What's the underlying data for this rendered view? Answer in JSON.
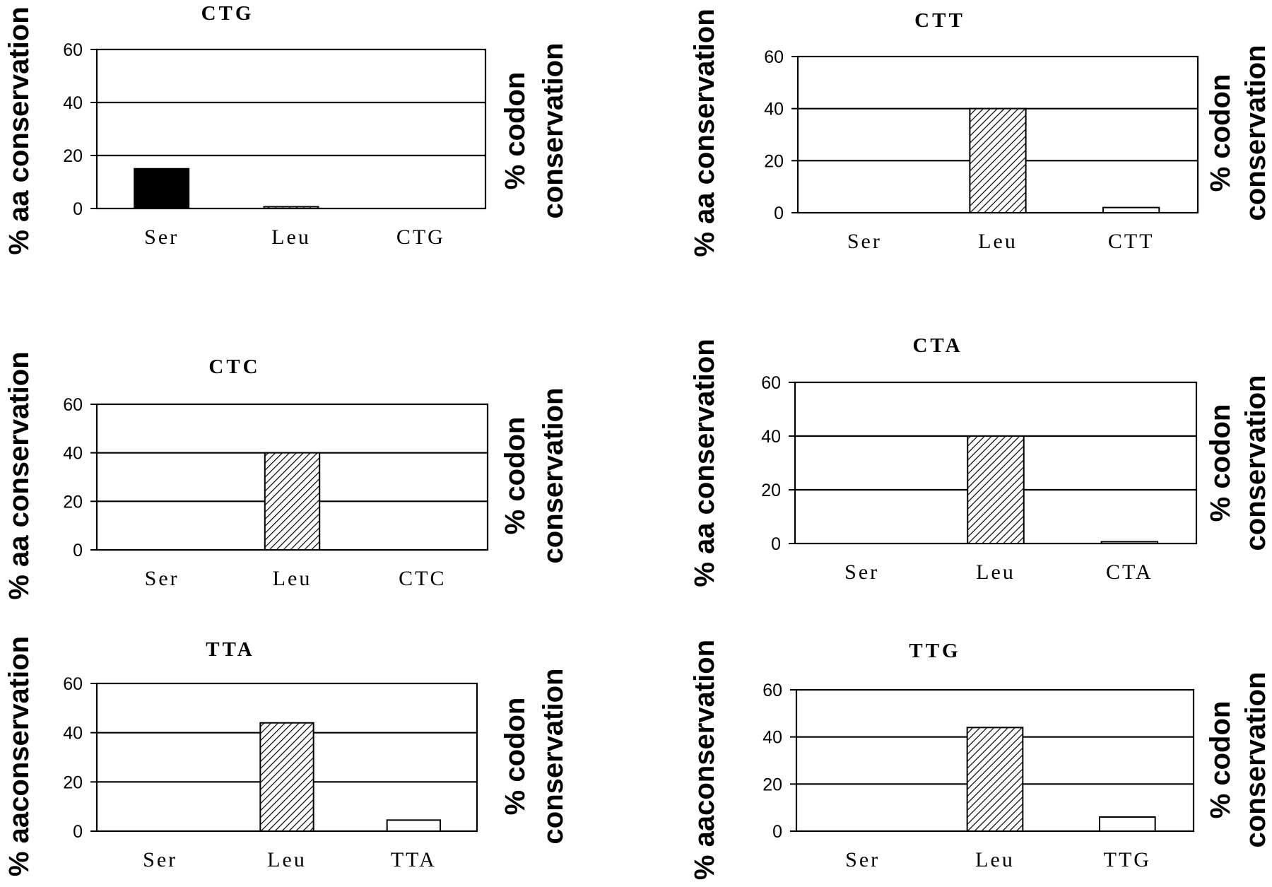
{
  "figure_title": "",
  "chart_data": [
    {
      "type": "bar",
      "title": "CTG",
      "categories": [
        "Ser",
        "Leu",
        "CTG"
      ],
      "values": [
        15,
        0.5,
        0
      ],
      "ylabel": "% aa conservation",
      "y2label": [
        "% codon",
        "conservation"
      ],
      "ylim": [
        0,
        60
      ],
      "yticks": [
        0,
        20,
        40,
        60
      ],
      "grid": true,
      "bar_fills": [
        "solid",
        "hatched",
        "open"
      ]
    },
    {
      "type": "bar",
      "title": "CTT",
      "categories": [
        "Ser",
        "Leu",
        "CTT"
      ],
      "values": [
        0,
        40,
        2
      ],
      "ylabel": "% aa conservation",
      "y2label": [
        "% codon",
        "conservation"
      ],
      "ylim": [
        0,
        60
      ],
      "yticks": [
        0,
        20,
        40,
        60
      ],
      "grid": true,
      "bar_fills": [
        "solid",
        "hatched",
        "open"
      ]
    },
    {
      "type": "bar",
      "title": "CTC",
      "categories": [
        "Ser",
        "Leu",
        "CTC"
      ],
      "values": [
        0,
        40,
        0
      ],
      "ylabel": "% aa conservation",
      "y2label": [
        "% codon",
        "conservation"
      ],
      "ylim": [
        0,
        60
      ],
      "yticks": [
        0,
        20,
        40,
        60
      ],
      "grid": true,
      "bar_fills": [
        "solid",
        "hatched",
        "open"
      ]
    },
    {
      "type": "bar",
      "title": "CTA",
      "categories": [
        "Ser",
        "Leu",
        "CTA"
      ],
      "values": [
        0,
        40,
        0.5
      ],
      "ylabel": "% aa conservation",
      "y2label": [
        "% codon",
        "conservation"
      ],
      "ylim": [
        0,
        60
      ],
      "yticks": [
        0,
        20,
        40,
        60
      ],
      "grid": true,
      "bar_fills": [
        "solid",
        "hatched",
        "open"
      ]
    },
    {
      "type": "bar",
      "title": "TTA",
      "categories": [
        "Ser",
        "Leu",
        "TTA"
      ],
      "values": [
        0,
        44,
        4.5
      ],
      "ylabel": "% aaconservation",
      "y2label": [
        "% codon",
        "conservation"
      ],
      "ylim": [
        0,
        60
      ],
      "yticks": [
        0,
        20,
        40,
        60
      ],
      "grid": true,
      "bar_fills": [
        "solid",
        "hatched",
        "open"
      ]
    },
    {
      "type": "bar",
      "title": "TTG",
      "categories": [
        "Ser",
        "Leu",
        "TTG"
      ],
      "values": [
        0,
        44,
        6
      ],
      "ylabel": "% aaconservation",
      "y2label": [
        "% codon",
        "conservation"
      ],
      "ylim": [
        0,
        60
      ],
      "yticks": [
        0,
        20,
        40,
        60
      ],
      "grid": true,
      "bar_fills": [
        "solid",
        "hatched",
        "open"
      ]
    }
  ]
}
